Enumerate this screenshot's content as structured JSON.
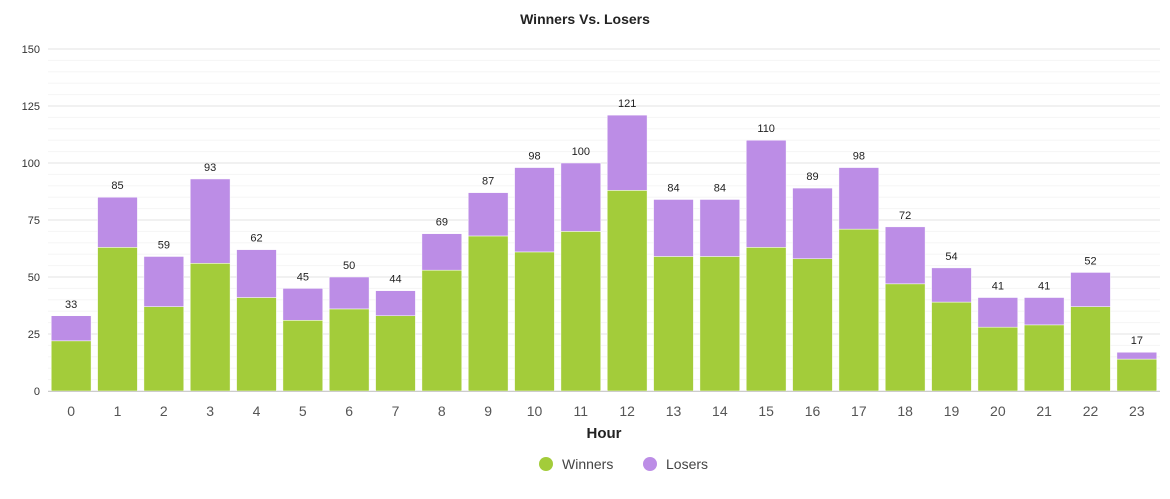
{
  "chart_data": {
    "type": "bar",
    "stacked": true,
    "title": "Winners Vs. Losers",
    "xlabel": "Hour",
    "ylabel": "",
    "ylim": [
      0,
      150
    ],
    "yticks": [
      0,
      25,
      50,
      75,
      100,
      125,
      150
    ],
    "grid": true,
    "legend_position": "bottom",
    "categories": [
      "0",
      "1",
      "2",
      "3",
      "4",
      "5",
      "6",
      "7",
      "8",
      "9",
      "10",
      "11",
      "12",
      "13",
      "14",
      "15",
      "16",
      "17",
      "18",
      "19",
      "20",
      "21",
      "22",
      "23"
    ],
    "series": [
      {
        "name": "Winners",
        "color": "#a3cc3a",
        "values": [
          22,
          63,
          37,
          56,
          41,
          31,
          36,
          33,
          53,
          68,
          61,
          70,
          88,
          59,
          59,
          63,
          58,
          71,
          47,
          39,
          28,
          29,
          37,
          14
        ]
      },
      {
        "name": "Losers",
        "color": "#bc8de6",
        "values": [
          11,
          22,
          22,
          37,
          21,
          14,
          14,
          11,
          16,
          19,
          37,
          30,
          33,
          25,
          25,
          47,
          31,
          27,
          25,
          15,
          13,
          12,
          15,
          3
        ]
      }
    ],
    "totals": [
      33,
      85,
      59,
      93,
      62,
      45,
      50,
      44,
      69,
      87,
      98,
      100,
      121,
      84,
      84,
      110,
      89,
      98,
      72,
      54,
      41,
      41,
      52,
      17
    ]
  }
}
